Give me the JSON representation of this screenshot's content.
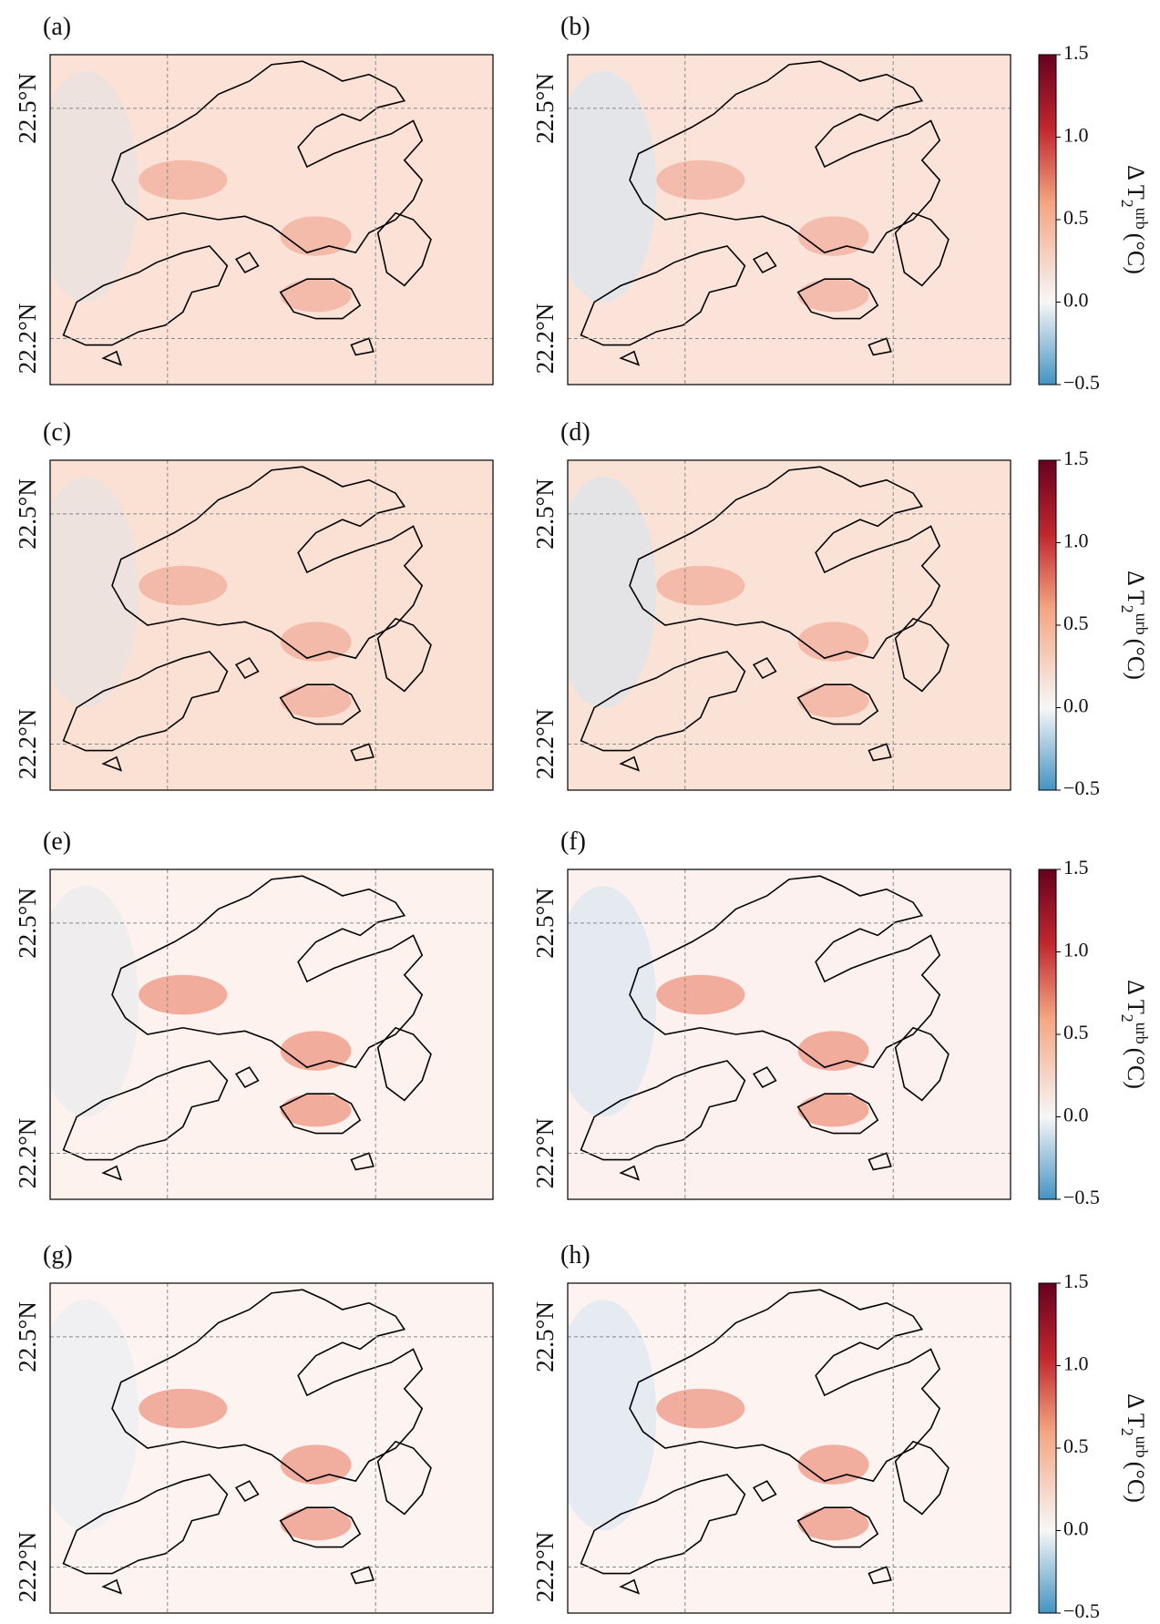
{
  "panels": [
    {
      "label": "(a)"
    },
    {
      "label": "(b)"
    },
    {
      "label": "(c)"
    },
    {
      "label": "(d)"
    },
    {
      "label": "(e)"
    },
    {
      "label": "(f)"
    },
    {
      "label": "(g)"
    },
    {
      "label": "(h)"
    }
  ],
  "map": {
    "ylim": [
      22.14,
      22.57
    ],
    "yticks": [
      {
        "value": 22.5,
        "label": "22.5°N"
      },
      {
        "value": 22.2,
        "label": "22.2°N"
      }
    ]
  },
  "colorbar": {
    "main": "Δ T",
    "sub": "2",
    "sup": "urb",
    "unit": "(°C)",
    "clim": [
      -0.5,
      1.5
    ],
    "ticks": [
      1.5,
      {
        "value": 1.0,
        "label": "1.0"
      },
      0.5,
      {
        "value": 0.0,
        "label": "0.0"
      },
      {
        "value": -0.5,
        "label": "−0.5"
      }
    ]
  }
}
